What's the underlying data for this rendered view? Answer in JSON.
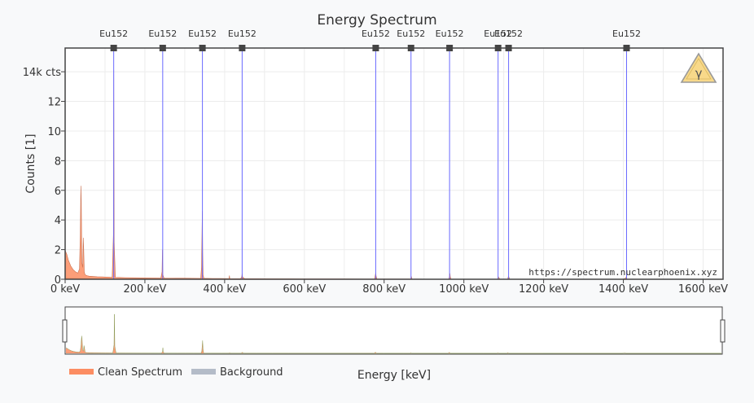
{
  "chart_data": {
    "type": "area",
    "title": "Energy Spectrum",
    "xlabel": "Energy [keV]",
    "ylabel": "Counts [1]",
    "xlim": [
      0,
      1650
    ],
    "ylim": [
      0,
      15600
    ],
    "x_ticks": [
      {
        "value": 0,
        "label": "0 keV"
      },
      {
        "value": 200,
        "label": "200 keV"
      },
      {
        "value": 400,
        "label": "400 keV"
      },
      {
        "value": 600,
        "label": "600 keV"
      },
      {
        "value": 800,
        "label": "800 keV"
      },
      {
        "value": 1000,
        "label": "1000 keV"
      },
      {
        "value": 1200,
        "label": "1200 keV"
      },
      {
        "value": 1400,
        "label": "1400 keV"
      },
      {
        "value": 1600,
        "label": "1600 keV"
      }
    ],
    "y_ticks": [
      {
        "value": 0,
        "label": "0"
      },
      {
        "value": 2000,
        "label": "2"
      },
      {
        "value": 4000,
        "label": "4"
      },
      {
        "value": 6000,
        "label": "6"
      },
      {
        "value": 8000,
        "label": "8"
      },
      {
        "value": 10000,
        "label": "10"
      },
      {
        "value": 12000,
        "label": "12"
      },
      {
        "value": 14000,
        "label": "14k cts"
      }
    ],
    "grid": true,
    "legend": {
      "placement": "bottom-left",
      "entries": [
        {
          "label": "Clean Spectrum",
          "color": "#fc8d62"
        },
        {
          "label": "Background",
          "color": "#b4bcc8"
        }
      ]
    },
    "series": [
      {
        "name": "Clean Spectrum",
        "color": "#fc8d62",
        "x": [
          0,
          4,
          8,
          14,
          20,
          26,
          32,
          36,
          38,
          39.5,
          40.5,
          42,
          44,
          45.5,
          46.5,
          48,
          50,
          55,
          60,
          70,
          80,
          90,
          100,
          110,
          118,
          121,
          122,
          123,
          126,
          135,
          150,
          170,
          190,
          215,
          240,
          243,
          244,
          245,
          248,
          260,
          280,
          300,
          320,
          340,
          342,
          344,
          345,
          346,
          348,
          352,
          370,
          390,
          411,
          412,
          413,
          440,
          443,
          444,
          445,
          450,
          480,
          520,
          560,
          600,
          650,
          700,
          750,
          776,
          778,
          779,
          780,
          782,
          800,
          850,
          867,
          868,
          870,
          900,
          950,
          962,
          964,
          965,
          966,
          968,
          1000,
          1050,
          1085,
          1086,
          1087,
          1090,
          1110,
          1111,
          1112,
          1115,
          1150,
          1200,
          1300,
          1400,
          1406,
          1407,
          1408,
          1410,
          1450,
          1500,
          1560,
          1650
        ],
        "y": [
          1950,
          1700,
          1300,
          900,
          650,
          500,
          420,
          700,
          3000,
          6300,
          5200,
          1100,
          800,
          2800,
          2100,
          500,
          300,
          240,
          210,
          190,
          170,
          160,
          150,
          140,
          130,
          3000,
          14100,
          2500,
          130,
          120,
          110,
          100,
          95,
          85,
          80,
          500,
          2000,
          300,
          80,
          75,
          70,
          70,
          65,
          60,
          800,
          4600,
          1800,
          300,
          65,
          60,
          55,
          50,
          48,
          250,
          48,
          40,
          180,
          400,
          150,
          40,
          35,
          32,
          30,
          28,
          25,
          22,
          20,
          20,
          300,
          450,
          200,
          20,
          18,
          15,
          15,
          200,
          15,
          12,
          10,
          10,
          200,
          400,
          150,
          10,
          8,
          7,
          7,
          100,
          150,
          7,
          6,
          150,
          200,
          6,
          5,
          5,
          4,
          4,
          80,
          150,
          60,
          4,
          3,
          3,
          2,
          2
        ]
      },
      {
        "name": "Background",
        "color": "#b4bcc8",
        "x": [
          0,
          50,
          100,
          200,
          400,
          800,
          1650
        ],
        "y": [
          70,
          45,
          30,
          18,
          9,
          4,
          1
        ]
      }
    ],
    "peak_markers": [
      {
        "energy": 121.8,
        "label": "Eu152"
      },
      {
        "energy": 244.7,
        "label": "Eu152"
      },
      {
        "energy": 344.3,
        "label": "Eu152"
      },
      {
        "energy": 443.9,
        "label": "Eu152"
      },
      {
        "energy": 778.9,
        "label": "Eu152"
      },
      {
        "energy": 867.4,
        "label": "Eu152"
      },
      {
        "energy": 964.1,
        "label": "Eu152"
      },
      {
        "energy": 1085.8,
        "label": "Eu152"
      },
      {
        "energy": 1112.1,
        "label": "Eu152"
      },
      {
        "energy": 1408.0,
        "label": "Eu152"
      }
    ],
    "range_slider": {
      "range": [
        0,
        1650
      ]
    },
    "watermark": "https://spectrum.nuclearphoenix.xyz",
    "logo": "gamma-warning-icon",
    "colors": {
      "marker_line": "#6a6aff",
      "marker_head": "#444444",
      "plot_bg": "#ffffff",
      "grid": "#ececec",
      "logo_fill": "#f8d98a"
    }
  }
}
